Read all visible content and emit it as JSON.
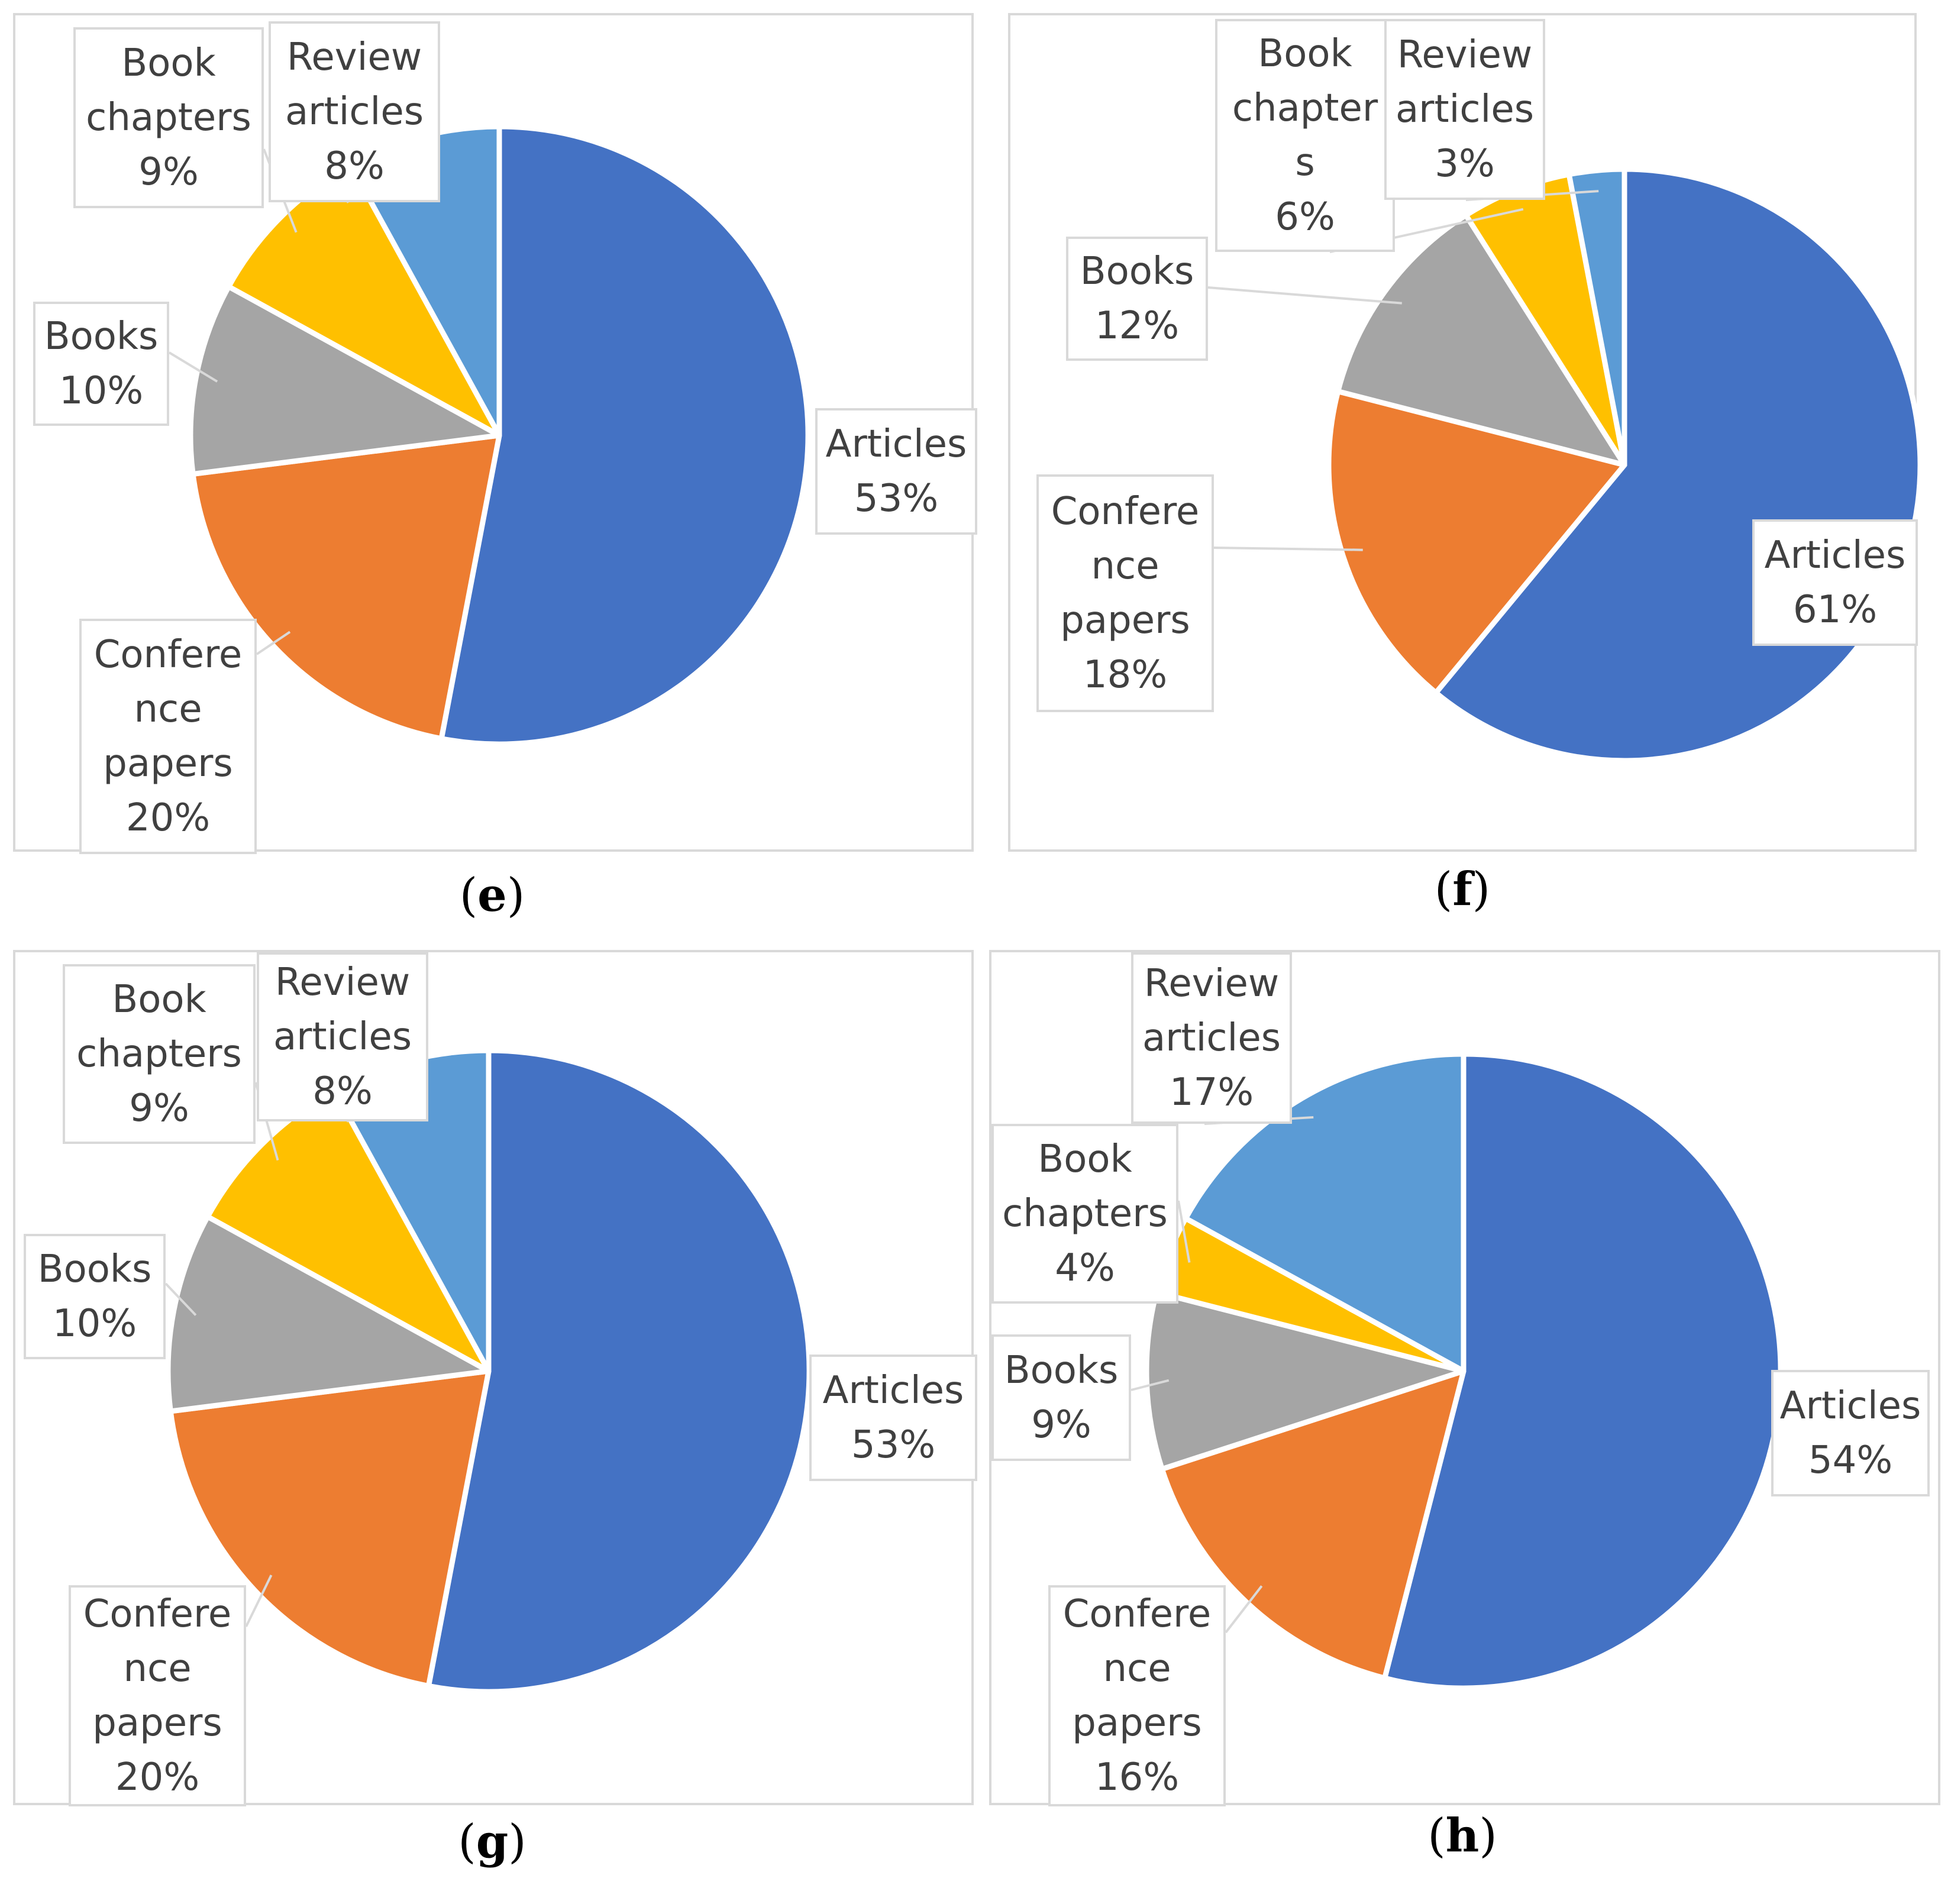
{
  "colors": {
    "Articles": "#4472c4",
    "Conference papers": "#ed7d31",
    "Books": "#a5a5a5",
    "Book chapters": "#ffc000",
    "Review articles": "#5b9bd5"
  },
  "chart_data": [
    {
      "type": "pie",
      "panel": "e",
      "caption": "e",
      "categories": [
        "Articles",
        "Conference papers",
        "Books",
        "Book chapters",
        "Review articles"
      ],
      "values": [
        53,
        20,
        10,
        9,
        8
      ],
      "labels": [
        {
          "lines": [
            "Articles",
            "53%"
          ]
        },
        {
          "lines": [
            "Confere",
            "nce",
            "papers",
            "20%"
          ]
        },
        {
          "lines": [
            "Books",
            "10%"
          ]
        },
        {
          "lines": [
            "Book",
            "chapters",
            "9%"
          ]
        },
        {
          "lines": [
            "Review",
            "articles",
            "8%"
          ]
        }
      ]
    },
    {
      "type": "pie",
      "panel": "f",
      "caption": "f",
      "categories": [
        "Articles",
        "Conference papers",
        "Books",
        "Book chapters",
        "Review articles"
      ],
      "values": [
        61,
        18,
        12,
        6,
        3
      ],
      "labels": [
        {
          "lines": [
            "Articles",
            "61%"
          ]
        },
        {
          "lines": [
            "Confere",
            "nce",
            "papers",
            "18%"
          ]
        },
        {
          "lines": [
            "Books",
            "12%"
          ]
        },
        {
          "lines": [
            "Book",
            "chapter",
            "s",
            "6%"
          ]
        },
        {
          "lines": [
            "Review",
            "articles",
            "3%"
          ]
        }
      ]
    },
    {
      "type": "pie",
      "panel": "g",
      "caption": "g",
      "categories": [
        "Articles",
        "Conference papers",
        "Books",
        "Book chapters",
        "Review articles"
      ],
      "values": [
        53,
        20,
        10,
        9,
        8
      ],
      "labels": [
        {
          "lines": [
            "Articles",
            "53%"
          ]
        },
        {
          "lines": [
            "Confere",
            "nce",
            "papers",
            "20%"
          ]
        },
        {
          "lines": [
            "Books",
            "10%"
          ]
        },
        {
          "lines": [
            "Book",
            "chapters",
            "9%"
          ]
        },
        {
          "lines": [
            "Review",
            "articles",
            "8%"
          ]
        }
      ]
    },
    {
      "type": "pie",
      "panel": "h",
      "caption": "h",
      "categories": [
        "Articles",
        "Conference papers",
        "Books",
        "Book chapters",
        "Review articles"
      ],
      "values": [
        54,
        16,
        9,
        4,
        17
      ],
      "labels": [
        {
          "lines": [
            "Articles",
            "54%"
          ]
        },
        {
          "lines": [
            "Confere",
            "nce",
            "papers",
            "16%"
          ]
        },
        {
          "lines": [
            "Books",
            "9%"
          ]
        },
        {
          "lines": [
            "Book",
            "chapters",
            "4%"
          ]
        },
        {
          "lines": [
            "Review",
            "articles",
            "17%"
          ]
        }
      ]
    }
  ]
}
